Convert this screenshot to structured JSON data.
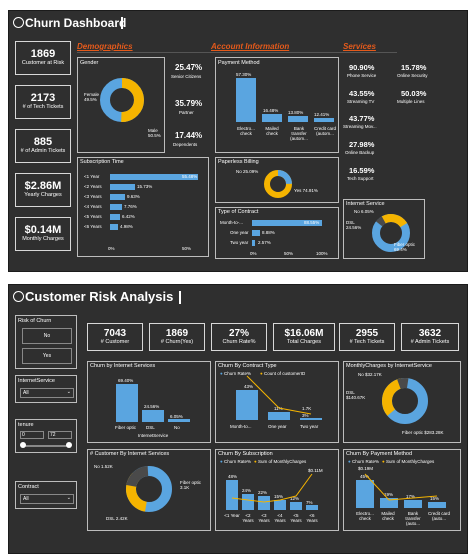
{
  "top": {
    "title": "Churn Dashboard",
    "kpis": [
      {
        "value": "1869",
        "label": "Customer at Risk"
      },
      {
        "value": "2173",
        "label": "# of Tech Tickets"
      },
      {
        "value": "885",
        "label": "# of Admin Tickets"
      },
      {
        "value": "$2.86M",
        "label": "Yearly Charges"
      },
      {
        "value": "$0.14M",
        "label": "Monthly Charges"
      }
    ],
    "sections": {
      "demographics": "Demographics",
      "account": "Account Information",
      "services": "Services"
    },
    "gender": {
      "title": "Gender",
      "female": "Female\n49.5%",
      "male": "Male\n50.5%"
    },
    "demo_stats": [
      {
        "value": "25.47%",
        "label": "Senior Citizens"
      },
      {
        "value": "35.79%",
        "label": "Partner"
      },
      {
        "value": "17.44%",
        "label": "Dependents"
      }
    ],
    "subscription": {
      "title": "Subscription Time",
      "categories": [
        "<1 Year",
        "<2 Years",
        "<3 Years",
        "<4 Years",
        "<5 Years",
        "<6 Years"
      ],
      "values": [
        55.48,
        15.73,
        9.63,
        7.76,
        6.42,
        4.98
      ],
      "labels": [
        "55.48%",
        "15.73%",
        "9.63%",
        "7.76%",
        "6.42%",
        "4.98%"
      ],
      "axis": [
        "0%",
        "50%"
      ]
    },
    "payment": {
      "title": "Payment Method",
      "categories": [
        "Electro... check",
        "Mailed check",
        "Bank transfer (autom...",
        "Credit card (autom..."
      ],
      "values": [
        57.3,
        16.48,
        13.8,
        12.41
      ],
      "labels": [
        "57.30%",
        "16.48%",
        "13.80%",
        "12.41%"
      ]
    },
    "billing": {
      "title": "Paperless Billing",
      "no": "No 25.09%",
      "yes": "Yes 74.91%"
    },
    "contract": {
      "title": "Type of Contract",
      "categories": [
        "Month-to-...",
        "One year",
        "Two year"
      ],
      "values": [
        88.55,
        8.88,
        2.57
      ],
      "labels": [
        "88.55%",
        "8.88%",
        "2.57%"
      ],
      "axis": [
        "0%",
        "50%",
        "100%"
      ]
    },
    "services": [
      {
        "value": "90.90%",
        "label": "Phone Service"
      },
      {
        "value": "15.78%",
        "label": "Online Security"
      },
      {
        "value": "43.55%",
        "label": "Streaming TV"
      },
      {
        "value": "50.03%",
        "label": "Multiple Lines"
      },
      {
        "value": "43.77%",
        "label": "Streaming Mov..."
      },
      {
        "value": "27.98%",
        "label": "Online Backup"
      },
      {
        "value": "16.59%",
        "label": "Tech Support"
      }
    ],
    "internet": {
      "title": "Internet Service",
      "no": "No 6.05%",
      "dsl": "DSL\n24.56%",
      "fiber": "Fiber optic\n69.4%"
    }
  },
  "bottom": {
    "title": "Customer Risk Analysis",
    "slicers": {
      "risk": {
        "title": "Risk of Churn",
        "options": [
          "No",
          "Yes"
        ]
      },
      "internet": {
        "title": "InternetService",
        "value": "All"
      },
      "tenure": {
        "title": "tenure",
        "min": "0",
        "max": "72"
      },
      "contract": {
        "title": "Contract",
        "value": "All"
      }
    },
    "kpis": [
      {
        "value": "7043",
        "label": "# Customer"
      },
      {
        "value": "1869",
        "label": "# Churn(Yes)"
      },
      {
        "value": "27%",
        "label": "Churn Rate%"
      },
      {
        "value": "$16.06M",
        "label": "Total Charges"
      },
      {
        "value": "2955",
        "label": "# Tech Tickets"
      },
      {
        "value": "3632",
        "label": "# Admin Tickets"
      }
    ],
    "churn_internet": {
      "title": "Churn by Internet Services",
      "categories": [
        "Fiber optic",
        "DSL",
        "No"
      ],
      "values": [
        69.4,
        24.56,
        6.05
      ],
      "labels": [
        "69.40%",
        "24.56%",
        "6.05%"
      ],
      "xlabel": "InternetService"
    },
    "churn_contract": {
      "title": "Churn By Contract Type",
      "legend": [
        "Churn Rate%",
        "Count of customerID"
      ],
      "categories": [
        "Month-to...",
        "One year",
        "Two year"
      ],
      "labels": [
        "43%",
        "11%",
        "1.7K",
        "3%"
      ]
    },
    "monthly": {
      "title": "MonthlyCharges by InternetService",
      "no": "No $32.17K",
      "dsl": "DSL\n$140.67K",
      "fiber": "Fiber optic $283.28K"
    },
    "count_internet": {
      "title": "# Customer By Internet Services",
      "no": "No 1.52K",
      "fiber": "Fiber optic\n3.1K",
      "dsl": "DSL 2.42K"
    },
    "churn_subscription": {
      "title": "Churn By Subscription",
      "legend": [
        "Churn Rate%",
        "Sum of MonthlyCharges"
      ],
      "categories": [
        "<1 Year",
        "<2 Years",
        "<3 Years",
        "<4 Years",
        "<5 Years",
        "<6 Years"
      ],
      "labels": [
        "$0.11M",
        "48%",
        "24%",
        "22%",
        "15%",
        "12%",
        "7%"
      ]
    },
    "churn_payment": {
      "title": "Churn By Payment Method",
      "legend": [
        "Churn Rate%",
        "Sum of MonthlyCharges"
      ],
      "categories": [
        "Electro... check",
        "Mailed check",
        "Bank transfer (auto...",
        "Credit card (auto..."
      ],
      "labels": [
        "$0.19M",
        "45%",
        "19%",
        "17%",
        "15%"
      ]
    }
  }
}
